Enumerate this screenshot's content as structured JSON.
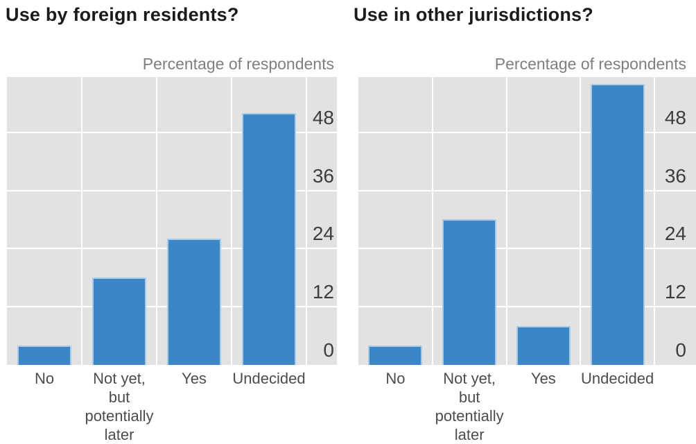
{
  "figure": {
    "background": "#ffffff",
    "description": "Two side-by-side bar charts of survey responses"
  },
  "colors": {
    "bar_fill": "#3a86c7",
    "bar_edge": "#a9cbe6",
    "panel_background": "#e2e2e2",
    "gridline": "#ffffff",
    "title_text": "#1b1b1b",
    "axis_title_text": "#7f7f7f",
    "tick_text": "#3d3d3d",
    "category_text": "#4c4c4c"
  },
  "chart_data": [
    {
      "type": "bar",
      "title": "Use by foreign residents?",
      "right_axis_title": "Percentage of respondents",
      "categories": [
        "No",
        "Not yet, but potentially later",
        "Yes",
        "Undecided"
      ],
      "category_label_lines": [
        [
          "No"
        ],
        [
          "Not yet,",
          "but",
          "potentially",
          "later"
        ],
        [
          "Yes"
        ],
        [
          "Undecided"
        ]
      ],
      "values": [
        4,
        18,
        26,
        52
      ],
      "yticks": [
        0,
        12,
        24,
        36,
        48
      ],
      "ylim": [
        0,
        59.4
      ],
      "grid": "white major gridlines, horizontal and vertical",
      "legend": "none",
      "tick_side": "right"
    },
    {
      "type": "bar",
      "title": "Use in other jurisdictions?",
      "right_axis_title": "Percentage of respondents",
      "categories": [
        "No",
        "Not yet, but potentially later",
        "Yes",
        "Undecided"
      ],
      "category_label_lines": [
        [
          "No"
        ],
        [
          "Not yet,",
          "but",
          "potentially",
          "later"
        ],
        [
          "Yes"
        ],
        [
          "Undecided"
        ]
      ],
      "values": [
        4,
        30,
        8,
        58
      ],
      "yticks": [
        0,
        12,
        24,
        36,
        48
      ],
      "ylim": [
        0,
        59.4
      ],
      "grid": "white major gridlines, horizontal and vertical",
      "legend": "none",
      "tick_side": "right"
    }
  ]
}
